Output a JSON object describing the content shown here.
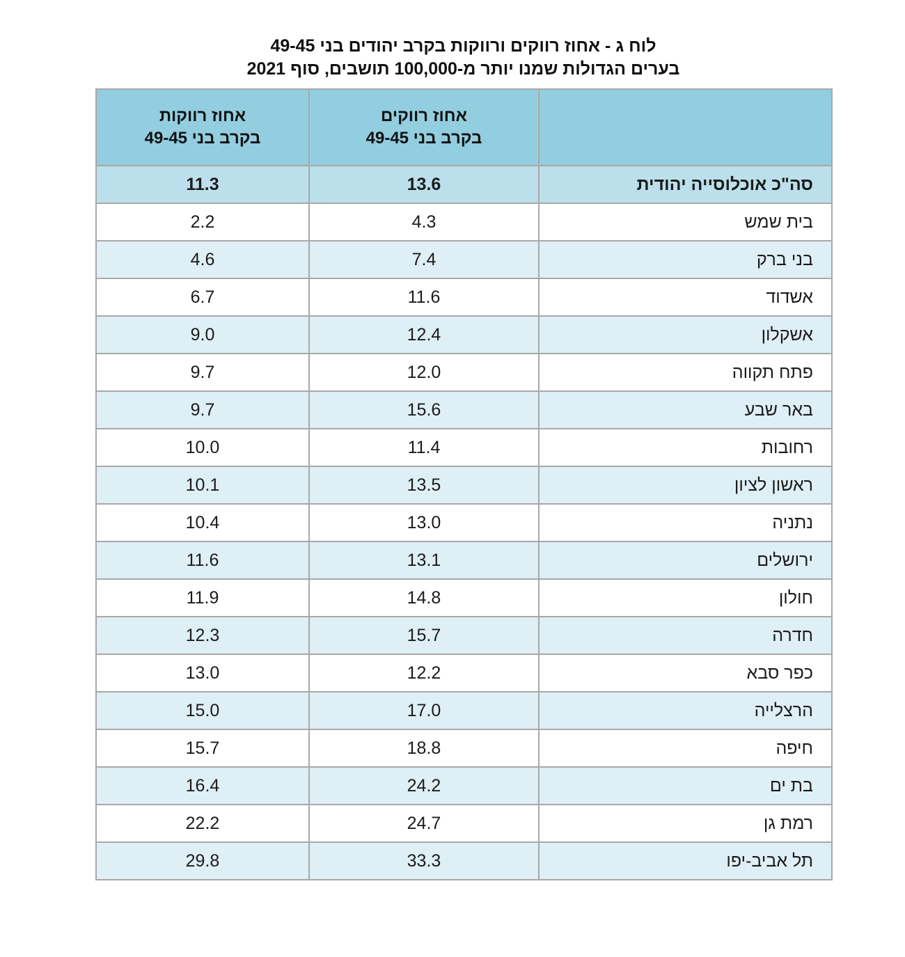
{
  "title": {
    "line1": "לוח ג - אחוז רווקים ורווקות בקרב יהודים בני 49-45",
    "line2": "בערים הגדולות שמנו יותר מ-100,000 תושבים, סוף 2021"
  },
  "table": {
    "headers": {
      "city": "",
      "men_line1": "אחוז רווקים",
      "men_line2": "בקרב בני 49-45",
      "women_line1": "אחוז רווקות",
      "women_line2": "בקרב בני 49-45"
    },
    "total_row": {
      "city": "סה\"כ אוכלוסייה יהודית",
      "men": "13.6",
      "women": "11.3"
    },
    "rows": [
      {
        "city": "בית שמש",
        "men": "4.3",
        "women": "2.2"
      },
      {
        "city": "בני ברק",
        "men": "7.4",
        "women": "4.6"
      },
      {
        "city": "אשדוד",
        "men": "11.6",
        "women": "6.7"
      },
      {
        "city": "אשקלון",
        "men": "12.4",
        "women": "9.0"
      },
      {
        "city": "פתח תקווה",
        "men": "12.0",
        "women": "9.7"
      },
      {
        "city": "באר שבע",
        "men": "15.6",
        "women": "9.7"
      },
      {
        "city": "רחובות",
        "men": "11.4",
        "women": "10.0"
      },
      {
        "city": "ראשון לציון",
        "men": "13.5",
        "women": "10.1"
      },
      {
        "city": "נתניה",
        "men": "13.0",
        "women": "10.4"
      },
      {
        "city": "ירושלים",
        "men": "13.1",
        "women": "11.6"
      },
      {
        "city": "חולון",
        "men": "14.8",
        "women": "11.9"
      },
      {
        "city": "חדרה",
        "men": "15.7",
        "women": "12.3"
      },
      {
        "city": "כפר סבא",
        "men": "12.2",
        "women": "13.0"
      },
      {
        "city": "הרצלייה",
        "men": "17.0",
        "women": "15.0"
      },
      {
        "city": "חיפה",
        "men": "18.8",
        "women": "15.7"
      },
      {
        "city": "בת ים",
        "men": "24.2",
        "women": "16.4"
      },
      {
        "city": "רמת גן",
        "men": "24.7",
        "women": "22.2"
      },
      {
        "city": "תל אביב-יפו",
        "men": "33.3",
        "women": "29.8"
      }
    ]
  },
  "colors": {
    "header_bg": "#92CEDF",
    "total_bg": "#BBE0EB",
    "stripe_bg": "#DEEFF5",
    "border": "#A8A8A8",
    "text": "#1B1B1B"
  }
}
